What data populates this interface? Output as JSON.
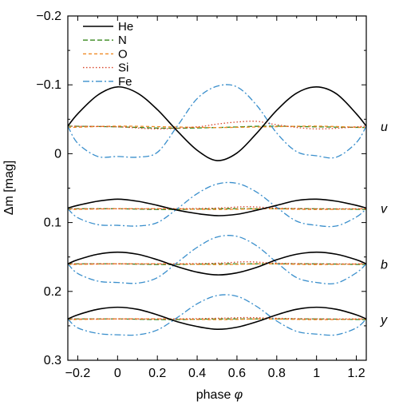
{
  "chart_data": {
    "type": "line",
    "xlabel": "phase",
    "xlabel_symbol": "φ",
    "ylabel": "Δm [mag]",
    "xlim": [
      -0.25,
      1.25
    ],
    "ylim": [
      -0.2,
      0.3
    ],
    "y_inverted": true,
    "x_ticks": [
      -0.2,
      0,
      0.2,
      0.4,
      0.6,
      0.8,
      1,
      1.2
    ],
    "x_tick_labels": [
      "−0.2",
      "0",
      "0.2",
      "0.4",
      "0.6",
      "0.8",
      "1",
      "1.2"
    ],
    "y_ticks": [
      -0.2,
      -0.1,
      0,
      0.1,
      0.2,
      0.3
    ],
    "y_tick_labels": [
      "−0.2",
      "−0.1",
      "0",
      "0.1",
      "0.2",
      "0.3"
    ],
    "legend_position": "top-left",
    "legend": [
      {
        "name": "He",
        "color": "#000000",
        "dash": "solid"
      },
      {
        "name": "N",
        "color": "#3a8a1e",
        "dash": "dashed"
      },
      {
        "name": "O",
        "color": "#f08a24",
        "dash": "shortdash"
      },
      {
        "name": "Si",
        "color": "#d8452a",
        "dash": "dotted"
      },
      {
        "name": "Fe",
        "color": "#3a8fcc",
        "dash": "dashdot"
      }
    ],
    "bands": [
      {
        "name": "u",
        "series": [
          {
            "name": "He",
            "x": [
              -0.25,
              -0.2,
              -0.1,
              0,
              0.1,
              0.2,
              0.3,
              0.4,
              0.5,
              0.6,
              0.7,
              0.8,
              0.9,
              1,
              1.1,
              1.2,
              1.25
            ],
            "y": [
              -0.04,
              -0.058,
              -0.085,
              -0.097,
              -0.088,
              -0.064,
              -0.033,
              -0.005,
              0.01,
              -0.001,
              -0.03,
              -0.063,
              -0.088,
              -0.097,
              -0.087,
              -0.058,
              -0.04
            ]
          },
          {
            "name": "N",
            "x": [
              -0.25,
              0,
              0.25,
              0.5,
              0.75,
              1,
              1.25
            ],
            "y": [
              -0.04,
              -0.039,
              -0.037,
              -0.038,
              -0.04,
              -0.039,
              -0.038
            ]
          },
          {
            "name": "O",
            "x": [
              -0.25,
              0,
              0.25,
              0.5,
              0.75,
              1,
              1.25
            ],
            "y": [
              -0.038,
              -0.04,
              -0.039,
              -0.038,
              -0.039,
              -0.04,
              -0.038
            ]
          },
          {
            "name": "Si",
            "x": [
              -0.25,
              0,
              0.2,
              0.4,
              0.5,
              0.6,
              0.7,
              0.8,
              1,
              1.25
            ],
            "y": [
              -0.04,
              -0.039,
              -0.036,
              -0.039,
              -0.043,
              -0.046,
              -0.047,
              -0.042,
              -0.036,
              -0.04
            ]
          },
          {
            "name": "Fe",
            "x": [
              -0.25,
              -0.2,
              -0.1,
              0,
              0.1,
              0.2,
              0.3,
              0.4,
              0.5,
              0.6,
              0.7,
              0.8,
              0.9,
              1,
              1.1,
              1.2,
              1.25
            ],
            "y": [
              -0.04,
              -0.015,
              0.004,
              0.004,
              0.005,
              -0.002,
              -0.04,
              -0.08,
              -0.098,
              -0.097,
              -0.07,
              -0.03,
              -0.003,
              0.003,
              0.005,
              -0.016,
              -0.04
            ]
          }
        ]
      },
      {
        "name": "v",
        "series": [
          {
            "name": "He",
            "x": [
              -0.25,
              -0.2,
              -0.1,
              0,
              0.1,
              0.2,
              0.3,
              0.4,
              0.5,
              0.6,
              0.7,
              0.8,
              0.9,
              1,
              1.1,
              1.2,
              1.25
            ],
            "y": [
              0.079,
              0.075,
              0.069,
              0.066,
              0.069,
              0.075,
              0.082,
              0.087,
              0.09,
              0.088,
              0.082,
              0.075,
              0.068,
              0.066,
              0.069,
              0.075,
              0.079
            ]
          },
          {
            "name": "N",
            "x": [
              -0.25,
              0,
              0.25,
              0.5,
              0.75,
              1,
              1.25
            ],
            "y": [
              0.08,
              0.08,
              0.081,
              0.08,
              0.08,
              0.08,
              0.081
            ]
          },
          {
            "name": "O",
            "x": [
              -0.25,
              0,
              0.25,
              0.5,
              0.75,
              1,
              1.25
            ],
            "y": [
              0.081,
              0.08,
              0.08,
              0.081,
              0.08,
              0.081,
              0.08
            ]
          },
          {
            "name": "Si",
            "x": [
              -0.25,
              0,
              0.25,
              0.5,
              0.65,
              0.8,
              1,
              1.25
            ],
            "y": [
              0.08,
              0.08,
              0.08,
              0.079,
              0.077,
              0.079,
              0.08,
              0.08
            ]
          },
          {
            "name": "Fe",
            "x": [
              -0.25,
              -0.2,
              -0.1,
              0,
              0.1,
              0.2,
              0.3,
              0.4,
              0.5,
              0.6,
              0.7,
              0.8,
              0.9,
              1,
              1.1,
              1.2,
              1.25
            ],
            "y": [
              0.08,
              0.093,
              0.103,
              0.104,
              0.105,
              0.1,
              0.08,
              0.058,
              0.044,
              0.043,
              0.056,
              0.078,
              0.098,
              0.104,
              0.105,
              0.092,
              0.08
            ]
          }
        ]
      },
      {
        "name": "b",
        "series": [
          {
            "name": "He",
            "x": [
              -0.25,
              -0.2,
              -0.1,
              0,
              0.1,
              0.2,
              0.3,
              0.4,
              0.5,
              0.6,
              0.7,
              0.8,
              0.9,
              1,
              1.1,
              1.2,
              1.25
            ],
            "y": [
              0.16,
              0.154,
              0.146,
              0.143,
              0.146,
              0.154,
              0.164,
              0.172,
              0.176,
              0.173,
              0.165,
              0.154,
              0.146,
              0.143,
              0.146,
              0.154,
              0.16
            ]
          },
          {
            "name": "N",
            "x": [
              -0.25,
              0,
              0.25,
              0.5,
              0.75,
              1,
              1.25
            ],
            "y": [
              0.16,
              0.16,
              0.161,
              0.16,
              0.16,
              0.16,
              0.161
            ]
          },
          {
            "name": "O",
            "x": [
              -0.25,
              0,
              0.25,
              0.5,
              0.75,
              1,
              1.25
            ],
            "y": [
              0.161,
              0.16,
              0.16,
              0.161,
              0.16,
              0.161,
              0.16
            ]
          },
          {
            "name": "Si",
            "x": [
              -0.25,
              0,
              0.25,
              0.5,
              0.65,
              0.8,
              1,
              1.25
            ],
            "y": [
              0.16,
              0.16,
              0.16,
              0.159,
              0.157,
              0.159,
              0.16,
              0.16
            ]
          },
          {
            "name": "Fe",
            "x": [
              -0.25,
              -0.2,
              -0.1,
              0,
              0.1,
              0.2,
              0.3,
              0.4,
              0.5,
              0.6,
              0.7,
              0.8,
              0.9,
              1,
              1.1,
              1.2,
              1.25
            ],
            "y": [
              0.16,
              0.174,
              0.185,
              0.187,
              0.188,
              0.18,
              0.158,
              0.136,
              0.121,
              0.12,
              0.134,
              0.158,
              0.18,
              0.187,
              0.188,
              0.173,
              0.16
            ]
          }
        ]
      },
      {
        "name": "y",
        "series": [
          {
            "name": "He",
            "x": [
              -0.25,
              -0.2,
              -0.1,
              0,
              0.1,
              0.2,
              0.3,
              0.4,
              0.5,
              0.6,
              0.7,
              0.8,
              0.9,
              1,
              1.1,
              1.2,
              1.25
            ],
            "y": [
              0.24,
              0.234,
              0.226,
              0.223,
              0.226,
              0.234,
              0.244,
              0.251,
              0.255,
              0.252,
              0.244,
              0.234,
              0.226,
              0.223,
              0.226,
              0.234,
              0.24
            ]
          },
          {
            "name": "N",
            "x": [
              -0.25,
              0,
              0.25,
              0.5,
              0.75,
              1,
              1.25
            ],
            "y": [
              0.24,
              0.24,
              0.241,
              0.24,
              0.24,
              0.24,
              0.241
            ]
          },
          {
            "name": "O",
            "x": [
              -0.25,
              0,
              0.25,
              0.5,
              0.75,
              1,
              1.25
            ],
            "y": [
              0.241,
              0.24,
              0.24,
              0.241,
              0.24,
              0.241,
              0.24
            ]
          },
          {
            "name": "Si",
            "x": [
              -0.25,
              0,
              0.25,
              0.5,
              0.65,
              0.8,
              1,
              1.25
            ],
            "y": [
              0.24,
              0.24,
              0.24,
              0.239,
              0.238,
              0.239,
              0.24,
              0.24
            ]
          },
          {
            "name": "Fe",
            "x": [
              -0.25,
              -0.2,
              -0.1,
              0,
              0.1,
              0.2,
              0.3,
              0.4,
              0.5,
              0.6,
              0.7,
              0.8,
              0.9,
              1,
              1.1,
              1.2,
              1.25
            ],
            "y": [
              0.24,
              0.253,
              0.261,
              0.263,
              0.263,
              0.256,
              0.238,
              0.218,
              0.206,
              0.207,
              0.222,
              0.243,
              0.258,
              0.262,
              0.263,
              0.253,
              0.24
            ]
          }
        ]
      }
    ]
  }
}
